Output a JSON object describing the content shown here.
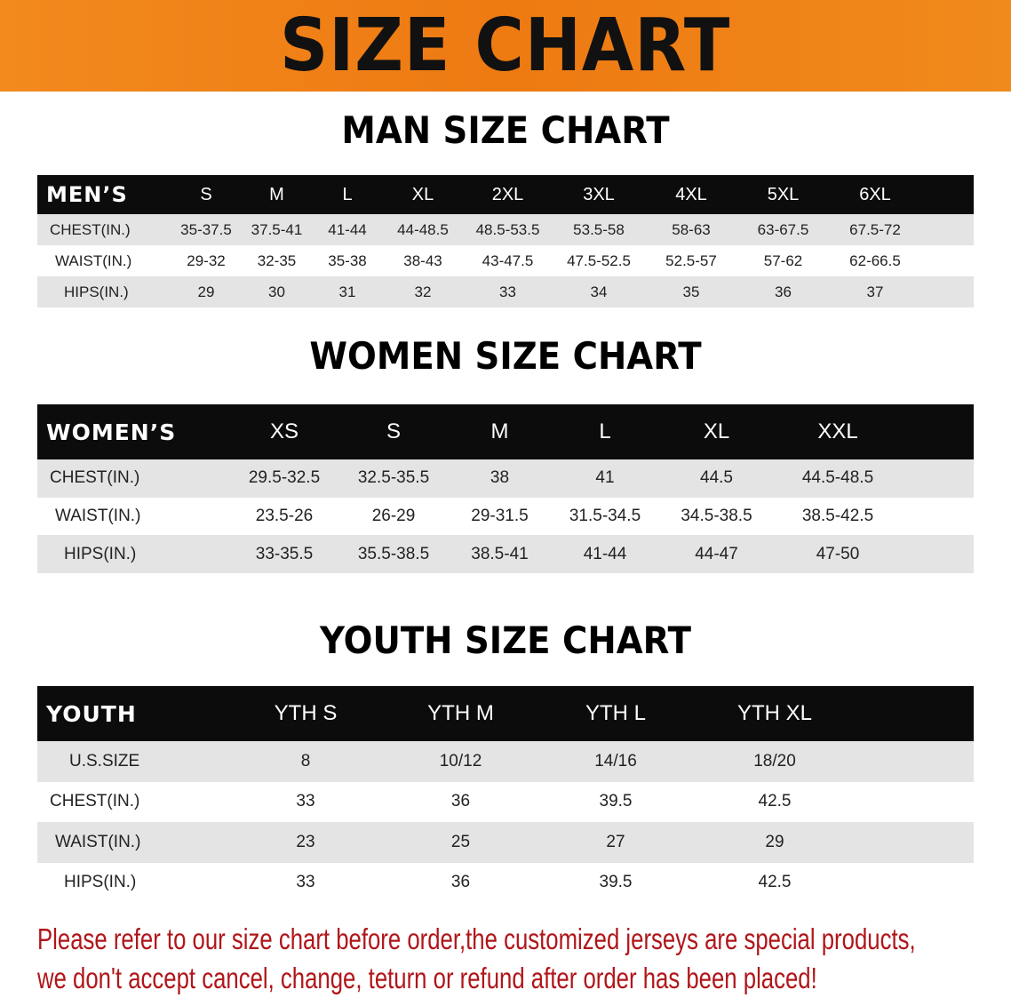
{
  "banner": "SIZE CHART",
  "men": {
    "title": "MAN SIZE CHART",
    "header": [
      "MEN’S",
      "S",
      "M",
      "L",
      "XL",
      "2XL",
      "3XL",
      "4XL",
      "5XL",
      "6XL"
    ],
    "rows": [
      [
        "CHEST(IN.)",
        "35-37.5",
        "37.5-41",
        "41-44",
        "44-48.5",
        "48.5-53.5",
        "53.5-58",
        "58-63",
        "63-67.5",
        "67.5-72"
      ],
      [
        "WAIST(IN.)",
        "29-32",
        "32-35",
        "35-38",
        "38-43",
        "43-47.5",
        "47.5-52.5",
        "52.5-57",
        "57-62",
        "62-66.5"
      ],
      [
        "HIPS(IN.)",
        "29",
        "30",
        "31",
        "32",
        "33",
        "34",
        "35",
        "36",
        "37"
      ]
    ]
  },
  "women": {
    "title": "WOMEN SIZE CHART",
    "header": [
      "WOMEN’S",
      "XS",
      "S",
      "M",
      "L",
      "XL",
      "XXL"
    ],
    "rows": [
      [
        "CHEST(IN.)",
        "29.5-32.5",
        "32.5-35.5",
        "38",
        "41",
        "44.5",
        "44.5-48.5"
      ],
      [
        "WAIST(IN.)",
        "23.5-26",
        "26-29",
        "29-31.5",
        "31.5-34.5",
        "34.5-38.5",
        "38.5-42.5"
      ],
      [
        "HIPS(IN.)",
        "33-35.5",
        "35.5-38.5",
        "38.5-41",
        "41-44",
        "44-47",
        "47-50"
      ]
    ]
  },
  "youth": {
    "title": "YOUTH SIZE CHART",
    "header": [
      "YOUTH",
      "YTH S",
      "YTH M",
      "YTH L",
      "YTH XL"
    ],
    "rows": [
      [
        "U.S.SIZE",
        "8",
        "10/12",
        "14/16",
        "18/20"
      ],
      [
        "CHEST(IN.)",
        "33",
        "36",
        "39.5",
        "42.5"
      ],
      [
        "WAIST(IN.)",
        "23",
        "25",
        "27",
        "29"
      ],
      [
        "HIPS(IN.)",
        "33",
        "36",
        "39.5",
        "42.5"
      ]
    ]
  },
  "notice": [
    "Please refer to our size chart before order,the customized jerseys are special products,",
    "we don't accept cancel, change, teturn or refund after order has been placed!"
  ],
  "colors": {
    "banner": "#ee7a12",
    "header_row": "#0c0c0c",
    "alt_row": "#e4e4e4",
    "notice": "#b0161a"
  }
}
